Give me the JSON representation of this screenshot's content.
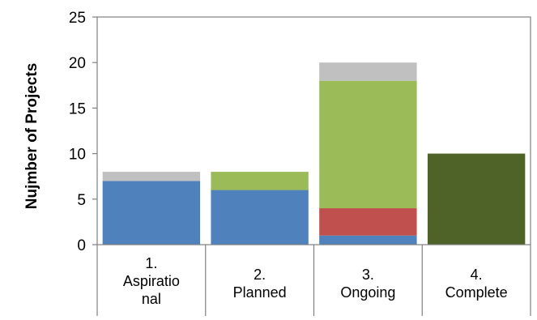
{
  "chart_data": {
    "type": "bar",
    "stacked": true,
    "categories": [
      [
        "1.",
        "Aspiratio",
        "nal"
      ],
      [
        "2.",
        "Planned"
      ],
      [
        "3.",
        "Ongoing"
      ],
      [
        "4.",
        "Complete"
      ]
    ],
    "series": [
      {
        "color": "#4f81bd",
        "values": [
          7,
          6,
          1,
          0
        ]
      },
      {
        "color": "#c0504d",
        "values": [
          0,
          0,
          3,
          0
        ]
      },
      {
        "color": "#9bbb59",
        "values": [
          0,
          2,
          14,
          0
        ]
      },
      {
        "color": "#c0c0c0",
        "values": [
          1,
          0,
          2,
          0
        ]
      },
      {
        "color": "#4f6228",
        "values": [
          0,
          0,
          0,
          10
        ]
      }
    ],
    "ylabel": "Nujmber of Projects",
    "ylim": [
      0,
      25
    ],
    "yticks": [
      0,
      5,
      10,
      15,
      20,
      25
    ],
    "grid": false,
    "legend": "none"
  }
}
